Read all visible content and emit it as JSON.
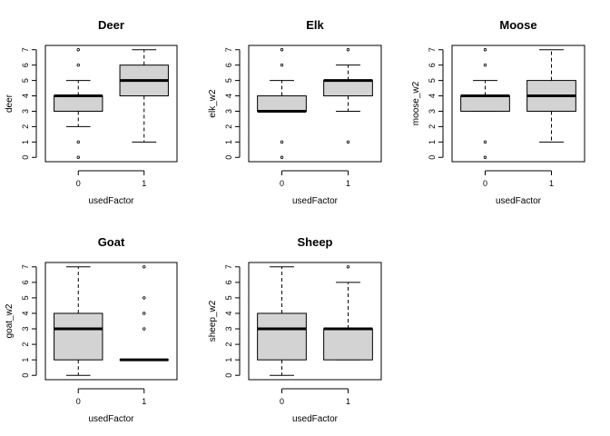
{
  "chart_data": [
    {
      "type": "boxplot",
      "title": "Deer",
      "xlabel": "usedFactor",
      "ylabel": "deer",
      "categories": [
        "0",
        "1"
      ],
      "ylim": [
        0,
        7
      ],
      "yticks": [
        "0",
        "1",
        "2",
        "3",
        "4",
        "5",
        "6",
        "7"
      ],
      "boxes": [
        {
          "whisker_low": 2,
          "q1": 3,
          "median": 4,
          "q3": 4,
          "whisker_high": 5,
          "outliers": [
            0,
            1,
            6,
            7
          ]
        },
        {
          "whisker_low": 1,
          "q1": 4,
          "median": 5,
          "q3": 6,
          "whisker_high": 7,
          "outliers": []
        }
      ]
    },
    {
      "type": "boxplot",
      "title": "Elk",
      "xlabel": "usedFactor",
      "ylabel": "elk_w2",
      "categories": [
        "0",
        "1"
      ],
      "ylim": [
        0,
        7
      ],
      "yticks": [
        "0",
        "1",
        "2",
        "3",
        "4",
        "5",
        "6",
        "7"
      ],
      "boxes": [
        {
          "whisker_low": 3,
          "q1": 3,
          "median": 3,
          "q3": 4,
          "whisker_high": 5,
          "outliers": [
            0,
            1,
            6,
            7
          ]
        },
        {
          "whisker_low": 3,
          "q1": 4,
          "median": 5,
          "q3": 5,
          "whisker_high": 6,
          "outliers": [
            1,
            7
          ]
        }
      ]
    },
    {
      "type": "boxplot",
      "title": "Moose",
      "xlabel": "usedFactor",
      "ylabel": "moose_w2",
      "categories": [
        "0",
        "1"
      ],
      "ylim": [
        0,
        7
      ],
      "yticks": [
        "0",
        "1",
        "2",
        "3",
        "4",
        "5",
        "6",
        "7"
      ],
      "boxes": [
        {
          "whisker_low": 3,
          "q1": 3,
          "median": 4,
          "q3": 4,
          "whisker_high": 5,
          "outliers": [
            0,
            1,
            6,
            7
          ]
        },
        {
          "whisker_low": 1,
          "q1": 3,
          "median": 4,
          "q3": 5,
          "whisker_high": 7,
          "outliers": []
        }
      ]
    },
    {
      "type": "boxplot",
      "title": "Goat",
      "xlabel": "usedFactor",
      "ylabel": "goat_w2",
      "categories": [
        "0",
        "1"
      ],
      "ylim": [
        0,
        7
      ],
      "yticks": [
        "0",
        "1",
        "2",
        "3",
        "4",
        "5",
        "6",
        "7"
      ],
      "boxes": [
        {
          "whisker_low": 0,
          "q1": 1,
          "median": 3,
          "q3": 4,
          "whisker_high": 7,
          "outliers": []
        },
        {
          "whisker_low": 1,
          "q1": 1,
          "median": 1,
          "q3": 1,
          "whisker_high": 1,
          "outliers": [
            3,
            4,
            5,
            7
          ]
        }
      ]
    },
    {
      "type": "boxplot",
      "title": "Sheep",
      "xlabel": "usedFactor",
      "ylabel": "sheep_w2",
      "categories": [
        "0",
        "1"
      ],
      "ylim": [
        0,
        7
      ],
      "yticks": [
        "0",
        "1",
        "2",
        "3",
        "4",
        "5",
        "6",
        "7"
      ],
      "boxes": [
        {
          "whisker_low": 0,
          "q1": 1,
          "median": 3,
          "q3": 4,
          "whisker_high": 7,
          "outliers": []
        },
        {
          "whisker_low": 1,
          "q1": 1,
          "median": 3,
          "q3": 3,
          "whisker_high": 6,
          "outliers": [
            7
          ]
        }
      ]
    }
  ],
  "style": {
    "box_fill": "#d3d3d3",
    "line_color": "#000000"
  }
}
